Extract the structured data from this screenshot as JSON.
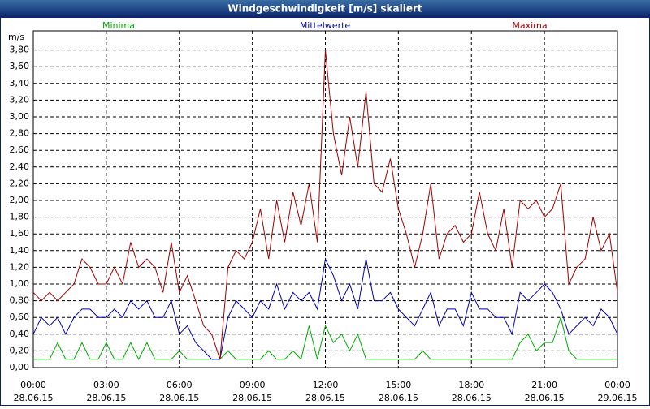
{
  "chart_data": {
    "type": "line",
    "title": "Windgeschwindigkeit [m/s] skaliert",
    "y_label": "m/s",
    "x": [
      0,
      0.33,
      0.67,
      1,
      1.33,
      1.67,
      2,
      2.33,
      2.67,
      3,
      3.33,
      3.67,
      4,
      4.33,
      4.67,
      5,
      5.33,
      5.67,
      6,
      6.33,
      6.67,
      7,
      7.33,
      7.67,
      8,
      8.33,
      8.67,
      9,
      9.33,
      9.67,
      10,
      10.33,
      10.67,
      11,
      11.33,
      11.67,
      12,
      12.33,
      12.67,
      13,
      13.33,
      13.67,
      14,
      14.33,
      14.67,
      15,
      15.33,
      15.67,
      16,
      16.33,
      16.67,
      17,
      17.33,
      17.67,
      18,
      18.33,
      18.67,
      19,
      19.33,
      19.67,
      20,
      20.33,
      20.67,
      21,
      21.33,
      21.67,
      22,
      22.33,
      22.67,
      23,
      23.33,
      23.67,
      24
    ],
    "series": [
      {
        "name": "Minima",
        "color": "#00aa00",
        "values": [
          0.1,
          0.1,
          0.1,
          0.3,
          0.1,
          0.1,
          0.3,
          0.1,
          0.1,
          0.3,
          0.1,
          0.1,
          0.3,
          0.1,
          0.3,
          0.1,
          0.1,
          0.1,
          0.2,
          0.1,
          0.1,
          0.1,
          0.1,
          0.1,
          0.2,
          0.1,
          0.1,
          0.1,
          0.1,
          0.2,
          0.1,
          0.1,
          0.2,
          0.1,
          0.5,
          0.1,
          0.5,
          0.3,
          0.4,
          0.2,
          0.4,
          0.1,
          0.1,
          0.1,
          0.1,
          0.1,
          0.1,
          0.1,
          0.2,
          0.1,
          0.1,
          0.1,
          0.1,
          0.1,
          0.1,
          0.1,
          0.1,
          0.1,
          0.1,
          0.1,
          0.3,
          0.4,
          0.2,
          0.3,
          0.3,
          0.6,
          0.2,
          0.1,
          0.1,
          0.1,
          0.1,
          0.1,
          0.1
        ]
      },
      {
        "name": "Mittelwerte",
        "color": "#0000aa",
        "values": [
          0.4,
          0.6,
          0.5,
          0.6,
          0.4,
          0.6,
          0.7,
          0.7,
          0.6,
          0.6,
          0.7,
          0.6,
          0.8,
          0.7,
          0.8,
          0.6,
          0.6,
          0.8,
          0.4,
          0.5,
          0.3,
          0.2,
          0.1,
          0.1,
          0.6,
          0.8,
          0.7,
          0.6,
          0.8,
          0.7,
          1.0,
          0.7,
          0.9,
          0.8,
          0.9,
          0.7,
          1.3,
          1.1,
          0.8,
          1.0,
          0.7,
          1.3,
          0.8,
          0.8,
          0.9,
          0.7,
          0.6,
          0.5,
          0.7,
          0.9,
          0.5,
          0.7,
          0.7,
          0.5,
          0.9,
          0.7,
          0.7,
          0.6,
          0.6,
          0.4,
          0.9,
          0.8,
          0.9,
          1.0,
          0.9,
          0.7,
          0.4,
          0.5,
          0.6,
          0.5,
          0.7,
          0.6,
          0.4
        ]
      },
      {
        "name": "Maxima",
        "color": "#a00000",
        "values": [
          0.9,
          0.8,
          0.9,
          0.8,
          0.9,
          1.0,
          1.3,
          1.2,
          1.0,
          1.0,
          1.2,
          1.0,
          1.5,
          1.2,
          1.3,
          1.2,
          0.9,
          1.5,
          0.9,
          1.1,
          0.8,
          0.5,
          0.4,
          0.1,
          1.2,
          1.4,
          1.3,
          1.5,
          1.9,
          1.3,
          2.0,
          1.5,
          2.1,
          1.7,
          2.2,
          1.5,
          3.8,
          2.8,
          2.3,
          3.0,
          2.4,
          3.3,
          2.2,
          2.1,
          2.5,
          1.9,
          1.6,
          1.2,
          1.6,
          2.2,
          1.3,
          1.6,
          1.7,
          1.5,
          1.6,
          2.1,
          1.6,
          1.4,
          1.9,
          1.2,
          2.0,
          1.9,
          2.0,
          1.8,
          1.9,
          2.2,
          1.0,
          1.2,
          1.3,
          1.8,
          1.4,
          1.6,
          0.9
        ]
      }
    ],
    "xlim": [
      0,
      24
    ],
    "xticks": [
      {
        "value": 0,
        "label": "00:00",
        "date": "28.06.15"
      },
      {
        "value": 3,
        "label": "03:00",
        "date": "28.06.15"
      },
      {
        "value": 6,
        "label": "06:00",
        "date": "28.06.15"
      },
      {
        "value": 9,
        "label": "09:00",
        "date": "28.06.15"
      },
      {
        "value": 12,
        "label": "12:00",
        "date": "28.06.15"
      },
      {
        "value": 15,
        "label": "15:00",
        "date": "28.06.15"
      },
      {
        "value": 18,
        "label": "18:00",
        "date": "28.06.15"
      },
      {
        "value": 21,
        "label": "21:00",
        "date": "28.06.15"
      },
      {
        "value": 24,
        "label": "00:00",
        "date": "29.06.15"
      }
    ],
    "ylim": [
      0,
      4
    ],
    "yticks": [
      {
        "value": 0,
        "label": "0,00"
      },
      {
        "value": 0.2,
        "label": "0,20"
      },
      {
        "value": 0.4,
        "label": "0,40"
      },
      {
        "value": 0.6,
        "label": "0,60"
      },
      {
        "value": 0.8,
        "label": "0,80"
      },
      {
        "value": 1.0,
        "label": "1,00"
      },
      {
        "value": 1.2,
        "label": "1,20"
      },
      {
        "value": 1.4,
        "label": "1,40"
      },
      {
        "value": 1.6,
        "label": "1,60"
      },
      {
        "value": 1.8,
        "label": "1,80"
      },
      {
        "value": 2.0,
        "label": "2,00"
      },
      {
        "value": 2.2,
        "label": "2,20"
      },
      {
        "value": 2.4,
        "label": "2,40"
      },
      {
        "value": 2.6,
        "label": "2,60"
      },
      {
        "value": 2.8,
        "label": "2,80"
      },
      {
        "value": 3.0,
        "label": "3,00"
      },
      {
        "value": 3.2,
        "label": "3,20"
      },
      {
        "value": 3.4,
        "label": "3,40"
      },
      {
        "value": 3.6,
        "label": "3,60"
      },
      {
        "value": 3.8,
        "label": "3,80"
      }
    ],
    "grid": true
  }
}
